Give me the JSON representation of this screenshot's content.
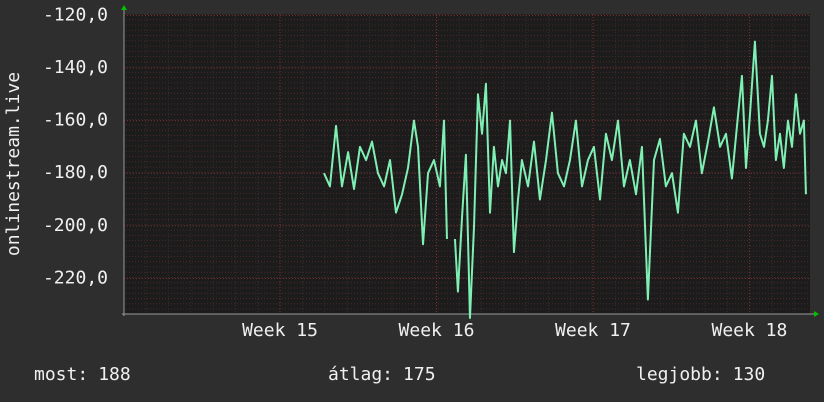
{
  "chart_data": {
    "type": "line",
    "y_label": "onlinestream.live",
    "xlim": [
      14.003,
      18.387
    ],
    "xticks": [
      {
        "value": 15,
        "label": "Week 15"
      },
      {
        "value": 16,
        "label": "Week 16"
      },
      {
        "value": 17,
        "label": "Week 17"
      },
      {
        "value": 18,
        "label": "Week 18"
      }
    ],
    "ylim": [
      -233.5,
      -119.5
    ],
    "yticks": [
      {
        "value": -120,
        "label": "-120,0"
      },
      {
        "value": -140,
        "label": "-140,0"
      },
      {
        "value": -160,
        "label": "-160,0"
      },
      {
        "value": -180,
        "label": "-180,0"
      },
      {
        "value": -200,
        "label": "-200,0"
      },
      {
        "value": -220,
        "label": "-220,0"
      }
    ],
    "grid": true,
    "x": [
      15.281,
      15.319,
      15.358,
      15.396,
      15.435,
      15.473,
      15.511,
      15.55,
      15.588,
      15.626,
      15.665,
      15.703,
      15.741,
      15.78,
      15.818,
      15.856,
      15.882,
      15.914,
      15.946,
      15.984,
      16.022,
      16.048,
      16.067,
      16.093,
      16.118,
      16.137,
      16.163,
      16.188,
      16.214,
      16.24,
      16.265,
      16.291,
      16.316,
      16.342,
      16.367,
      16.393,
      16.419,
      16.444,
      16.47,
      16.495,
      16.521,
      16.546,
      16.585,
      16.623,
      16.661,
      16.7,
      16.738,
      16.776,
      16.815,
      16.853,
      16.891,
      16.93,
      16.968,
      17.006,
      17.045,
      17.083,
      17.121,
      17.16,
      17.198,
      17.236,
      17.275,
      17.313,
      17.351,
      17.39,
      17.428,
      17.466,
      17.505,
      17.543,
      17.581,
      17.62,
      17.658,
      17.696,
      17.735,
      17.773,
      17.812,
      17.85,
      17.888,
      17.927,
      17.952,
      17.978,
      18.003,
      18.035,
      18.067,
      18.093,
      18.118,
      18.144,
      18.169,
      18.195,
      18.22,
      18.246,
      18.272,
      18.297,
      18.323,
      18.348,
      18.361
    ],
    "series": [
      {
        "color": "#7ff0b4",
        "values": [
          -180,
          -185,
          -162,
          -185,
          -172,
          -186,
          -170,
          -175,
          -168,
          -180,
          -185,
          -175,
          -195,
          -188,
          -178,
          -160,
          -170,
          -207,
          -180,
          -175,
          -185,
          -160,
          -205,
          null,
          -205,
          -225,
          -197,
          -173,
          -235,
          -200,
          -150,
          -165,
          -146,
          -195,
          -170,
          -185,
          -175,
          -180,
          -160,
          -210,
          -190,
          -175,
          -185,
          -168,
          -190,
          -175,
          -157,
          -180,
          -185,
          -175,
          -160,
          -185,
          -175,
          -170,
          -190,
          -165,
          -175,
          -160,
          -185,
          -175,
          -188,
          -170,
          -228,
          -175,
          -167,
          -185,
          -180,
          -195,
          -165,
          -170,
          -160,
          -180,
          -168,
          -155,
          -170,
          -165,
          -182,
          -158,
          -143,
          -178,
          -158,
          -130,
          -165,
          -170,
          -160,
          -143,
          -175,
          -165,
          -178,
          -160,
          -170,
          -150,
          -165,
          -160,
          -188
        ]
      }
    ],
    "footer": [
      {
        "label": "most:",
        "value": 188
      },
      {
        "label": "átlag:",
        "value": 175
      },
      {
        "label": "legjobb:",
        "value": 130
      }
    ]
  }
}
